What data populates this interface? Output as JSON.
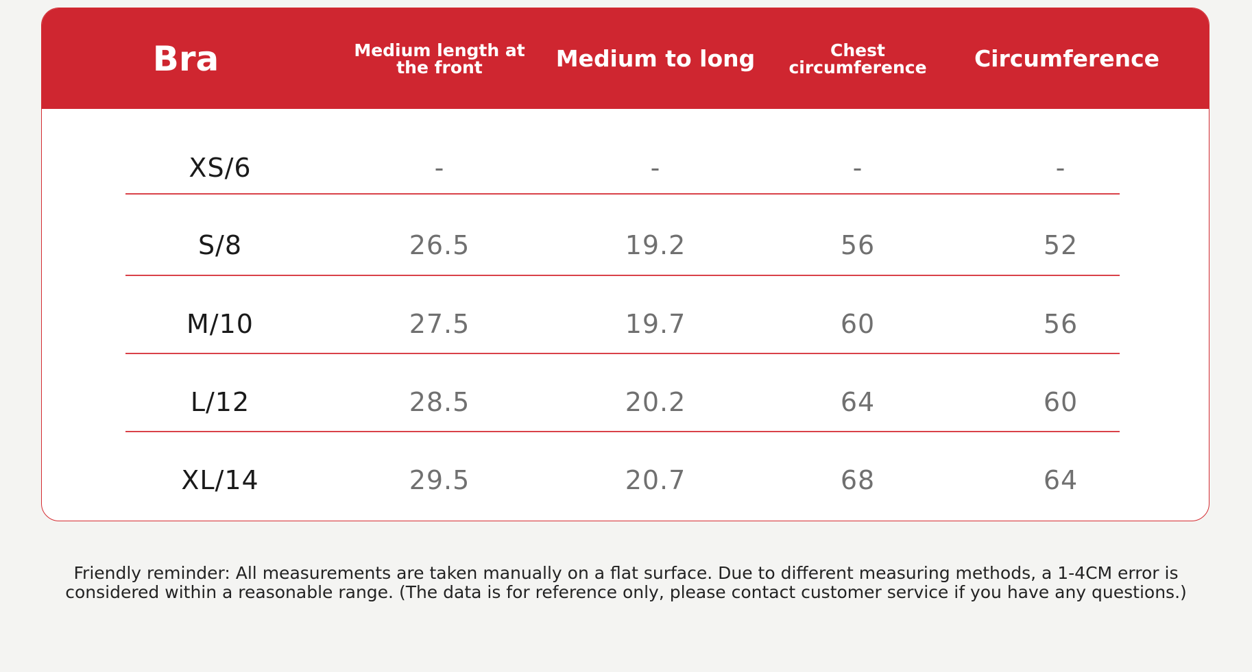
{
  "table": {
    "title": "Bra",
    "columns": [
      "Medium length at the front",
      "Medium to long",
      "Chest circumference",
      "Circumference"
    ],
    "rows": [
      {
        "size": "XS/6",
        "values": [
          "-",
          "-",
          "-",
          "-"
        ]
      },
      {
        "size": "S/8",
        "values": [
          "26.5",
          "19.2",
          "56",
          "52"
        ]
      },
      {
        "size": "M/10",
        "values": [
          "27.5",
          "19.7",
          "60",
          "56"
        ]
      },
      {
        "size": "L/12",
        "values": [
          "28.5",
          "20.2",
          "64",
          "60"
        ]
      },
      {
        "size": "XL/14",
        "values": [
          "29.5",
          "20.7",
          "68",
          "64"
        ]
      }
    ]
  },
  "note": {
    "line1": "Friendly reminder: All measurements are taken manually on a flat surface. Due to different measuring methods, a 1-4CM error is",
    "line2": "considered within a reasonable range.   (The data is for reference only, please contact customer service if you have any questions.)"
  },
  "colors": {
    "header_red": "#cf2630",
    "divider_red": "#d94148",
    "background": "#f4f4f2"
  }
}
